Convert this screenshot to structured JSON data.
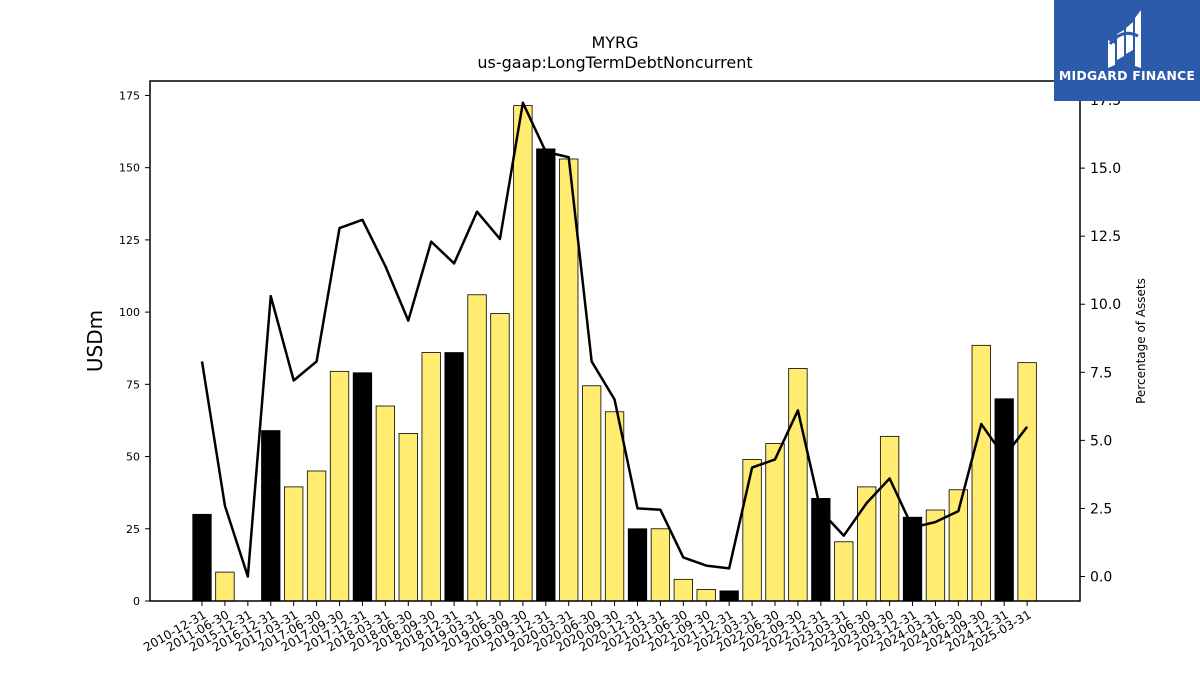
{
  "chart_data": {
    "type": "bar",
    "title": "MYRG",
    "subtitle": "us-gaap:LongTermDebtNoncurrent",
    "ylabel": "USDm",
    "y2label": "Percentage of Assets",
    "ylim": [
      0,
      180
    ],
    "y2lim": [
      -0.9,
      18.2
    ],
    "yticks": [
      0,
      25,
      50,
      75,
      100,
      125,
      150,
      175
    ],
    "y2ticks": [
      0.0,
      2.5,
      5.0,
      7.5,
      10.0,
      12.5,
      15.0,
      17.5
    ],
    "y2tick_labels": [
      "0.0",
      "2.5",
      "5.0",
      "7.5",
      "10.0",
      "12.5",
      "15.0",
      "17.5"
    ],
    "categories": [
      "2010-12-31",
      "2011-06-30",
      "2015-12-31",
      "2016-12-31",
      "2017-03-31",
      "2017-06-30",
      "2017-09-30",
      "2017-12-31",
      "2018-03-31",
      "2018-06-30",
      "2018-09-30",
      "2018-12-31",
      "2019-03-31",
      "2019-06-30",
      "2019-09-30",
      "2019-12-31",
      "2020-03-31",
      "2020-06-30",
      "2020-09-30",
      "2020-12-31",
      "2021-03-31",
      "2021-06-30",
      "2021-09-30",
      "2021-12-31",
      "2022-03-31",
      "2022-06-30",
      "2022-09-30",
      "2022-12-31",
      "2023-03-31",
      "2023-06-30",
      "2023-09-30",
      "2023-12-31",
      "2024-03-31",
      "2024-06-30",
      "2024-09-30",
      "2024-12-31",
      "2025-03-31"
    ],
    "series": [
      {
        "type": "bar",
        "values": [
          30,
          10,
          0,
          59,
          39.5,
          45,
          79.5,
          79,
          67.5,
          58,
          86,
          86,
          106,
          99.5,
          171.5,
          156.5,
          153,
          74.5,
          65.5,
          25,
          25,
          7.5,
          4,
          3.5,
          49,
          54.5,
          80.5,
          35.5,
          20.5,
          39.5,
          57,
          29,
          31.5,
          38.5,
          88.5,
          70,
          82.5
        ],
        "highlight": [
          true,
          false,
          false,
          true,
          false,
          false,
          false,
          true,
          false,
          false,
          false,
          true,
          false,
          false,
          false,
          true,
          false,
          false,
          false,
          true,
          false,
          false,
          false,
          true,
          false,
          false,
          false,
          true,
          false,
          false,
          false,
          true,
          false,
          false,
          false,
          true,
          false
        ],
        "color": "#ffec70",
        "highlight_color": "#000000"
      },
      {
        "type": "line",
        "axis": "right",
        "values": [
          7.9,
          2.6,
          0.0,
          10.3,
          7.2,
          7.9,
          12.8,
          13.1,
          11.4,
          9.4,
          12.3,
          11.5,
          13.4,
          12.4,
          17.4,
          15.6,
          15.4,
          7.9,
          6.5,
          2.5,
          2.45,
          0.7,
          0.4,
          0.3,
          4.0,
          4.3,
          6.1,
          2.4,
          1.5,
          2.7,
          3.6,
          1.8,
          2.0,
          2.4,
          5.6,
          4.4,
          5.5
        ],
        "color": "#000000"
      }
    ]
  },
  "logo": {
    "text": "MIDGARD FINANCE"
  }
}
